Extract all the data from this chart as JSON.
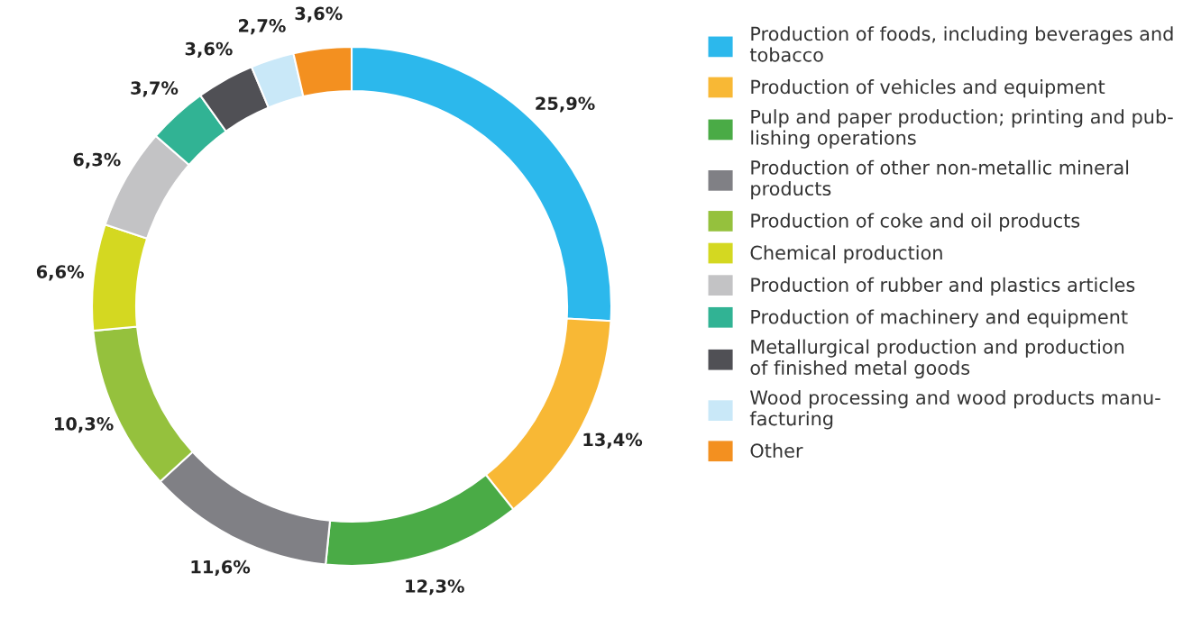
{
  "chart_data": {
    "type": "donut",
    "categories": [
      "Production of foods, including beverages and\ntobacco",
      "Production of vehicles and equipment",
      "Pulp and paper production; printing and pub-\nlishing operations",
      "Production of other non-metallic mineral\nproducts",
      "Production of coke and oil products",
      "Chemical production",
      "Production of rubber and plastics articles",
      "Production of machinery and equipment",
      "Metallurgical production and production\nof finished metal goods",
      "Wood processing and wood products manu-\nfacturing",
      "Other"
    ],
    "values": [
      25.9,
      13.4,
      12.3,
      11.6,
      10.3,
      6.6,
      6.3,
      3.7,
      3.6,
      2.7,
      3.6
    ],
    "value_labels": [
      "25,9%",
      "13,4%",
      "12,3%",
      "11,6%",
      "10,3%",
      "6,6%",
      "6,3%",
      "3,7%",
      "3,6%",
      "2,7%",
      "3,6%"
    ],
    "colors": [
      "#2cb8ec",
      "#f8b835",
      "#4aab46",
      "#808085",
      "#95c13d",
      "#d4d821",
      "#c3c3c5",
      "#31b394",
      "#505055",
      "#c9e8f8",
      "#f39020"
    ],
    "legend": "right"
  }
}
